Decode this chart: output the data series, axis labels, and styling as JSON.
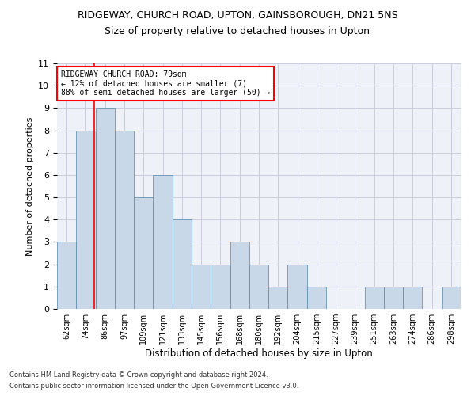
{
  "title": "RIDGEWAY, CHURCH ROAD, UPTON, GAINSBOROUGH, DN21 5NS",
  "subtitle": "Size of property relative to detached houses in Upton",
  "xlabel": "Distribution of detached houses by size in Upton",
  "ylabel": "Number of detached properties",
  "footer1": "Contains HM Land Registry data © Crown copyright and database right 2024.",
  "footer2": "Contains public sector information licensed under the Open Government Licence v3.0.",
  "bar_labels": [
    "62sqm",
    "74sqm",
    "86sqm",
    "97sqm",
    "109sqm",
    "121sqm",
    "133sqm",
    "145sqm",
    "156sqm",
    "168sqm",
    "180sqm",
    "192sqm",
    "204sqm",
    "215sqm",
    "227sqm",
    "239sqm",
    "251sqm",
    "263sqm",
    "274sqm",
    "286sqm",
    "298sqm"
  ],
  "bar_values": [
    3,
    8,
    9,
    8,
    5,
    6,
    4,
    2,
    2,
    3,
    2,
    1,
    2,
    1,
    0,
    0,
    1,
    1,
    1,
    0,
    1
  ],
  "bar_color": "#c8d8e8",
  "bar_edge_color": "#5588aa",
  "grid_color": "#ccccdd",
  "background_color": "#eef2f8",
  "annotation_line1": "RIDGEWAY CHURCH ROAD: 79sqm",
  "annotation_line2": "← 12% of detached houses are smaller (7)",
  "annotation_line3": "88% of semi-detached houses are larger (50) →",
  "ylim": [
    0,
    11
  ],
  "yticks": [
    0,
    1,
    2,
    3,
    4,
    5,
    6,
    7,
    8,
    9,
    10,
    11
  ],
  "annotation_fontsize": 7.0,
  "title_fontsize": 9,
  "subtitle_fontsize": 9
}
